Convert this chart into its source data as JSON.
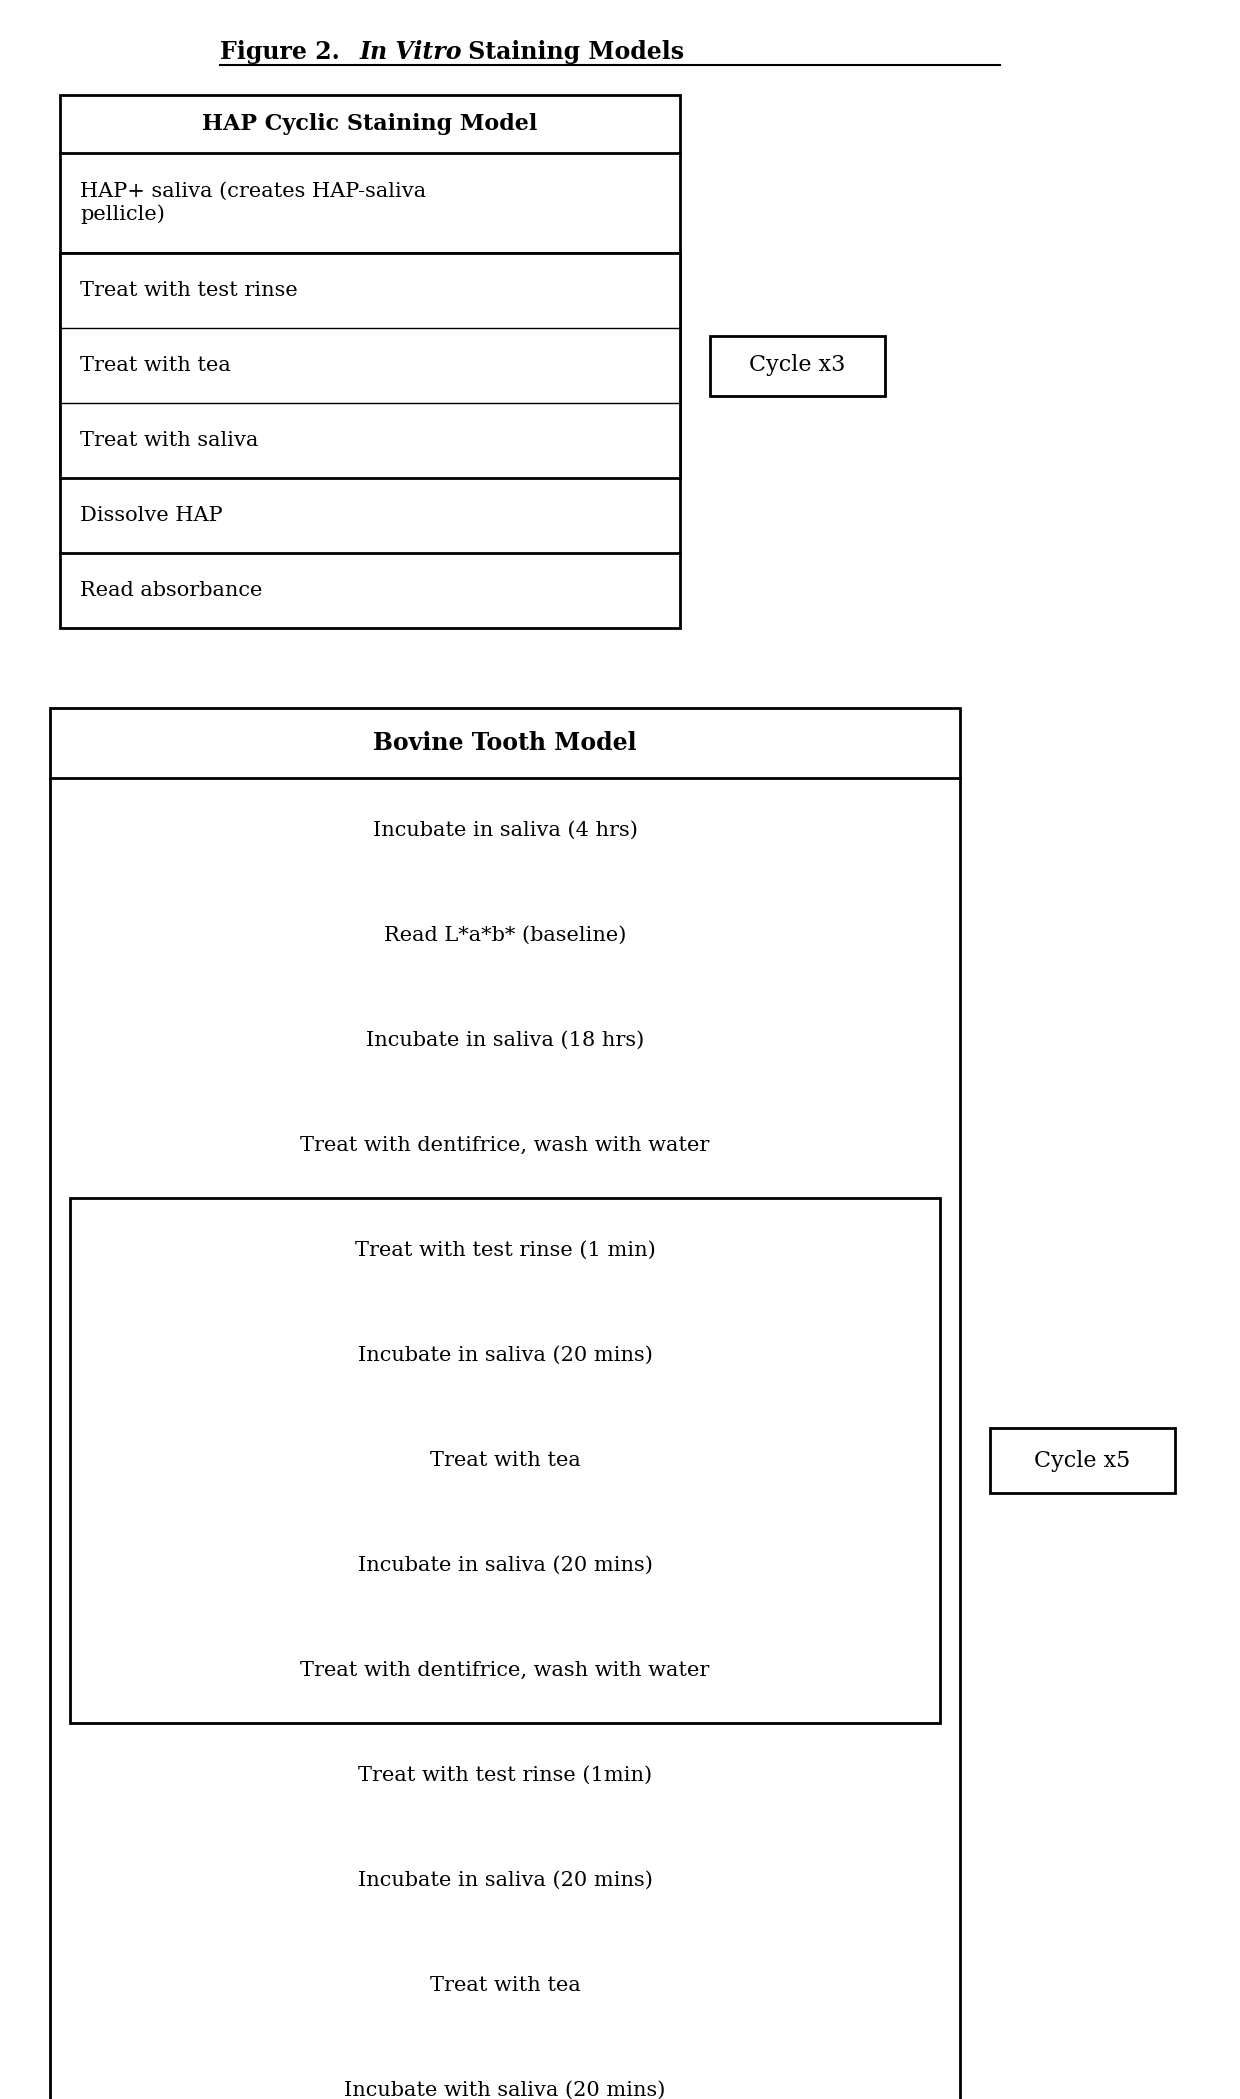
{
  "bg_color": "#ffffff",
  "box_color": "#000000",
  "text_color": "#000000",
  "title_normal1": "Figure 2. ",
  "title_italic": "In Vitro",
  "title_normal2": " Staining Models",
  "hap_title": "HAP Cyclic Staining Model",
  "hap_step0": "HAP+ saliva (creates HAP-saliva\npellicle)",
  "hap_step1": "Treat with test rinse",
  "hap_step2": "Treat with tea",
  "hap_step3": "Treat with saliva",
  "hap_step4": "Dissolve HAP",
  "hap_step5": "Read absorbance",
  "hap_cycle_label": "Cycle x3",
  "bovine_title": "Bovine Tooth Model",
  "bovine_step0": "Incubate in saliva (4 hrs)",
  "bovine_step1": "Read L*a*b* (baseline)",
  "bovine_step2": "Incubate in saliva (18 hrs)",
  "bovine_step3": "Treat with dentifrice, wash with water",
  "bovine_step4": "Treat with test rinse (1 min)",
  "bovine_step5": "Incubate in saliva (20 mins)",
  "bovine_step6": "Treat with tea",
  "bovine_step7": "Incubate in saliva (20 mins)",
  "bovine_step8": "Treat with dentifrice, wash with water",
  "bovine_step9": "Treat with test rinse (1min)",
  "bovine_step10": "Incubate in saliva (20 mins)",
  "bovine_step11": "Treat with tea",
  "bovine_step12": "Incubate with saliva (20 mins)",
  "bovine_cycle_label": "Cycle x5",
  "figwidth": 12.4,
  "figheight": 20.99,
  "dpi": 100
}
